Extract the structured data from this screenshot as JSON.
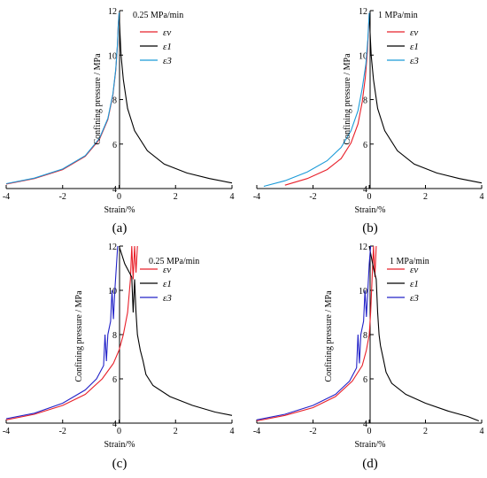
{
  "chart_data": [
    {
      "type": "line",
      "panel_label": "(a)",
      "rate_label": "0.25 MPa/min",
      "xlabel": "Strain/%",
      "ylabel": "Confining pressure / MPa",
      "xlim": [
        -4,
        4
      ],
      "ylim": [
        4,
        12
      ],
      "x_ticks": [
        "-4",
        "-2",
        "0",
        "2",
        "4"
      ],
      "y_ticks": [
        "4",
        "6",
        "8",
        "10",
        "12"
      ],
      "series": [
        {
          "name": "εv",
          "color": "#e8202a",
          "points": [
            [
              -4.0,
              4.2
            ],
            [
              -3.0,
              4.45
            ],
            [
              -2.0,
              4.85
            ],
            [
              -1.2,
              5.45
            ],
            [
              -0.7,
              6.2
            ],
            [
              -0.4,
              7.1
            ],
            [
              -0.22,
              8.2
            ],
            [
              -0.12,
              9.3
            ],
            [
              -0.06,
              10.4
            ],
            [
              -0.03,
              11.3
            ],
            [
              0.0,
              11.9
            ]
          ]
        },
        {
          "name": "ε1",
          "color": "#000000",
          "points": [
            [
              0.0,
              11.9
            ],
            [
              0.03,
              11.0
            ],
            [
              0.07,
              10.0
            ],
            [
              0.15,
              8.9
            ],
            [
              0.3,
              7.6
            ],
            [
              0.55,
              6.6
            ],
            [
              1.0,
              5.7
            ],
            [
              1.6,
              5.1
            ],
            [
              2.4,
              4.7
            ],
            [
              3.2,
              4.45
            ],
            [
              4.0,
              4.25
            ]
          ]
        },
        {
          "name": "ε3",
          "color": "#1a9ad8",
          "points": [
            [
              -4.0,
              4.22
            ],
            [
              -3.0,
              4.47
            ],
            [
              -2.0,
              4.88
            ],
            [
              -1.2,
              5.48
            ],
            [
              -0.7,
              6.25
            ],
            [
              -0.4,
              7.15
            ],
            [
              -0.22,
              8.25
            ],
            [
              -0.12,
              9.35
            ],
            [
              -0.06,
              10.45
            ],
            [
              -0.03,
              11.3
            ],
            [
              0.0,
              11.9
            ]
          ]
        }
      ]
    },
    {
      "type": "line",
      "panel_label": "(b)",
      "rate_label": "1 MPa/min",
      "xlabel": "Strain/%",
      "ylabel": "Confining pressure / MPa",
      "xlim": [
        -4,
        4
      ],
      "ylim": [
        4,
        12
      ],
      "x_ticks": [
        "-4",
        "-2",
        "0",
        "2",
        "4"
      ],
      "y_ticks": [
        "4",
        "6",
        "8",
        "10",
        "12"
      ],
      "series": [
        {
          "name": "εv",
          "color": "#e8202a",
          "points": [
            [
              -3.0,
              4.15
            ],
            [
              -2.2,
              4.45
            ],
            [
              -1.5,
              4.85
            ],
            [
              -1.0,
              5.35
            ],
            [
              -0.65,
              6.05
            ],
            [
              -0.4,
              6.9
            ],
            [
              -0.25,
              7.9
            ],
            [
              -0.14,
              9.0
            ],
            [
              -0.07,
              10.1
            ],
            [
              -0.03,
              11.0
            ],
            [
              0.0,
              11.9
            ]
          ]
        },
        {
          "name": "ε1",
          "color": "#000000",
          "points": [
            [
              0.0,
              11.9
            ],
            [
              0.03,
              11.0
            ],
            [
              0.07,
              10.0
            ],
            [
              0.15,
              8.9
            ],
            [
              0.3,
              7.6
            ],
            [
              0.55,
              6.6
            ],
            [
              1.0,
              5.7
            ],
            [
              1.6,
              5.1
            ],
            [
              2.4,
              4.7
            ],
            [
              3.2,
              4.45
            ],
            [
              4.0,
              4.25
            ]
          ]
        },
        {
          "name": "ε3",
          "color": "#1a9ad8",
          "points": [
            [
              -3.75,
              4.1
            ],
            [
              -3.0,
              4.35
            ],
            [
              -2.2,
              4.75
            ],
            [
              -1.5,
              5.25
            ],
            [
              -1.0,
              5.85
            ],
            [
              -0.65,
              6.6
            ],
            [
              -0.4,
              7.5
            ],
            [
              -0.25,
              8.5
            ],
            [
              -0.12,
              9.6
            ],
            [
              -0.05,
              10.7
            ],
            [
              0.0,
              11.9
            ]
          ]
        }
      ]
    },
    {
      "type": "line",
      "panel_label": "(c)",
      "rate_label": "0.25 MPa/min",
      "xlabel": "Strain/%",
      "ylabel": "Confining pressure / MPa",
      "xlim": [
        -4,
        4
      ],
      "ylim": [
        4,
        12
      ],
      "x_ticks": [
        "-4",
        "-2",
        "0",
        "2",
        "4"
      ],
      "y_ticks": [
        "4",
        "6",
        "8",
        "10",
        "12"
      ],
      "series": [
        {
          "name": "εv",
          "color": "#e8202a",
          "points": [
            [
              -4.0,
              4.15
            ],
            [
              -3.0,
              4.4
            ],
            [
              -2.0,
              4.8
            ],
            [
              -1.2,
              5.3
            ],
            [
              -0.6,
              6.0
            ],
            [
              -0.2,
              6.7
            ],
            [
              0.0,
              7.3
            ],
            [
              0.15,
              8.0
            ],
            [
              0.3,
              9.0
            ],
            [
              0.4,
              10.5
            ],
            [
              0.45,
              12.0
            ],
            [
              0.5,
              10.5
            ],
            [
              0.55,
              12.0
            ],
            [
              0.6,
              10.8
            ],
            [
              0.65,
              12.0
            ]
          ]
        },
        {
          "name": "ε1",
          "color": "#000000",
          "points": [
            [
              0.0,
              12.0
            ],
            [
              0.2,
              11.2
            ],
            [
              0.45,
              10.6
            ],
            [
              0.5,
              9.0
            ],
            [
              0.55,
              10.5
            ],
            [
              0.6,
              9.0
            ],
            [
              0.65,
              8.0
            ],
            [
              0.75,
              7.3
            ],
            [
              0.85,
              6.8
            ],
            [
              0.95,
              6.2
            ],
            [
              1.2,
              5.7
            ],
            [
              1.8,
              5.2
            ],
            [
              2.6,
              4.8
            ],
            [
              3.4,
              4.5
            ],
            [
              4.0,
              4.35
            ]
          ]
        },
        {
          "name": "ε3",
          "color": "#2323c8",
          "points": [
            [
              -4.0,
              4.2
            ],
            [
              -3.0,
              4.45
            ],
            [
              -2.0,
              4.9
            ],
            [
              -1.2,
              5.5
            ],
            [
              -0.8,
              6.0
            ],
            [
              -0.55,
              6.6
            ],
            [
              -0.5,
              8.0
            ],
            [
              -0.45,
              6.8
            ],
            [
              -0.4,
              8.0
            ],
            [
              -0.3,
              8.6
            ],
            [
              -0.25,
              10.0
            ],
            [
              -0.2,
              8.7
            ],
            [
              -0.15,
              10.0
            ],
            [
              -0.1,
              11.0
            ],
            [
              -0.05,
              12.0
            ]
          ]
        }
      ]
    },
    {
      "type": "line",
      "panel_label": "(d)",
      "rate_label": "1 MPa/min",
      "xlabel": "Strain/%",
      "ylabel": "Confining pressure / MPa",
      "xlim": [
        -4,
        4
      ],
      "ylim": [
        4,
        12
      ],
      "x_ticks": [
        "-4",
        "-2",
        "0",
        "2",
        "4"
      ],
      "y_ticks": [
        "4",
        "6",
        "8",
        "10",
        "12"
      ],
      "series": [
        {
          "name": "εv",
          "color": "#e8202a",
          "points": [
            [
              -4.0,
              4.1
            ],
            [
              -3.0,
              4.35
            ],
            [
              -2.0,
              4.7
            ],
            [
              -1.2,
              5.2
            ],
            [
              -0.6,
              5.9
            ],
            [
              -0.25,
              6.6
            ],
            [
              -0.1,
              7.3
            ],
            [
              0.0,
              8.0
            ],
            [
              0.05,
              9.0
            ],
            [
              0.1,
              10.5
            ],
            [
              0.15,
              12.0
            ],
            [
              0.2,
              10.6
            ],
            [
              0.25,
              12.0
            ]
          ]
        },
        {
          "name": "ε1",
          "color": "#000000",
          "points": [
            [
              0.0,
              12.0
            ],
            [
              0.15,
              11.0
            ],
            [
              0.25,
              10.5
            ],
            [
              0.3,
              9.0
            ],
            [
              0.35,
              8.0
            ],
            [
              0.4,
              7.5
            ],
            [
              0.5,
              6.9
            ],
            [
              0.6,
              6.3
            ],
            [
              0.8,
              5.8
            ],
            [
              1.3,
              5.3
            ],
            [
              2.0,
              4.9
            ],
            [
              2.8,
              4.55
            ],
            [
              3.5,
              4.3
            ],
            [
              3.9,
              4.1
            ]
          ]
        },
        {
          "name": "ε3",
          "color": "#2323c8",
          "points": [
            [
              -4.0,
              4.15
            ],
            [
              -3.0,
              4.4
            ],
            [
              -2.0,
              4.8
            ],
            [
              -1.2,
              5.3
            ],
            [
              -0.7,
              5.9
            ],
            [
              -0.45,
              6.5
            ],
            [
              -0.4,
              8.0
            ],
            [
              -0.35,
              6.7
            ],
            [
              -0.3,
              8.0
            ],
            [
              -0.2,
              8.6
            ],
            [
              -0.15,
              10.0
            ],
            [
              -0.1,
              8.8
            ],
            [
              -0.05,
              10.0
            ],
            [
              0.0,
              11.2
            ],
            [
              0.05,
              12.0
            ]
          ]
        }
      ]
    }
  ]
}
